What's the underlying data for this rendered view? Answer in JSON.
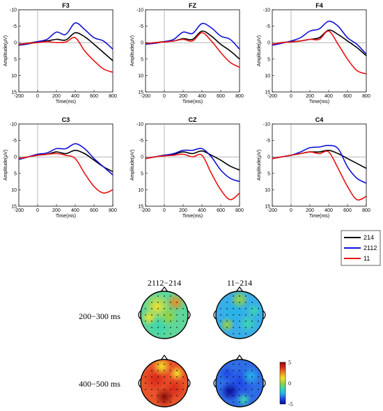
{
  "chart_data": {
    "type": "line",
    "panels": [
      {
        "title": "F3",
        "series": [
          {
            "name": "214",
            "x": [
              -200,
              -100,
              0,
              100,
              200,
              300,
              400,
              500,
              600,
              700,
              800
            ],
            "y": [
              0.5,
              0.2,
              -0.3,
              -0.5,
              -1.0,
              -0.8,
              -3.0,
              -1.8,
              0.5,
              3.0,
              5.5
            ]
          },
          {
            "name": "2112",
            "x": [
              -200,
              -100,
              0,
              100,
              200,
              300,
              400,
              500,
              600,
              700,
              800
            ],
            "y": [
              0.8,
              0.4,
              -0.3,
              -1.0,
              -3.2,
              -2.5,
              -6.0,
              -4.0,
              -1.5,
              -0.5,
              2.0
            ]
          },
          {
            "name": "11",
            "x": [
              -200,
              -100,
              0,
              100,
              200,
              300,
              400,
              500,
              600,
              700,
              800
            ],
            "y": [
              0.6,
              0.2,
              0.0,
              -0.3,
              0.0,
              -0.2,
              -1.5,
              2.5,
              5.5,
              8.0,
              9.0
            ]
          }
        ]
      },
      {
        "title": "FZ",
        "series": [
          {
            "name": "214",
            "x": [
              -200,
              -100,
              0,
              100,
              200,
              300,
              400,
              500,
              600,
              700,
              800
            ],
            "y": [
              0.3,
              0.0,
              -0.3,
              -0.5,
              -1.2,
              -1.0,
              -3.5,
              -2.0,
              0.5,
              2.5,
              5.0
            ]
          },
          {
            "name": "2112",
            "x": [
              -200,
              -100,
              0,
              100,
              200,
              300,
              400,
              500,
              600,
              700,
              800
            ],
            "y": [
              0.5,
              0.2,
              -0.3,
              -1.0,
              -3.2,
              -2.8,
              -5.8,
              -4.5,
              -2.0,
              -1.0,
              2.0
            ]
          },
          {
            "name": "11",
            "x": [
              -200,
              -100,
              0,
              100,
              200,
              300,
              400,
              500,
              600,
              700,
              800
            ],
            "y": [
              0.3,
              0.0,
              -0.2,
              -0.5,
              -1.0,
              -0.5,
              -3.0,
              -0.5,
              3.0,
              6.0,
              7.5
            ]
          }
        ]
      },
      {
        "title": "F4",
        "series": [
          {
            "name": "214",
            "x": [
              -200,
              -100,
              0,
              100,
              200,
              300,
              400,
              500,
              600,
              700,
              800
            ],
            "y": [
              0.5,
              0.0,
              -0.3,
              -0.5,
              -1.0,
              -1.5,
              -3.8,
              -2.5,
              -0.5,
              1.5,
              4.0
            ]
          },
          {
            "name": "2112",
            "x": [
              -200,
              -100,
              0,
              100,
              200,
              300,
              400,
              500,
              600,
              700,
              800
            ],
            "y": [
              0.8,
              0.2,
              -0.5,
              -1.5,
              -3.5,
              -4.2,
              -6.5,
              -5.0,
              -1.5,
              0.5,
              3.5
            ]
          },
          {
            "name": "11",
            "x": [
              -200,
              -100,
              0,
              100,
              200,
              300,
              400,
              500,
              600,
              700,
              800
            ],
            "y": [
              0.5,
              0.0,
              -0.2,
              -0.5,
              -1.0,
              -1.0,
              -3.5,
              0.5,
              5.0,
              8.5,
              9.5
            ]
          }
        ]
      },
      {
        "title": "C3",
        "series": [
          {
            "name": "214",
            "x": [
              -200,
              -100,
              0,
              100,
              200,
              300,
              400,
              500,
              600,
              700,
              800
            ],
            "y": [
              0.5,
              0.0,
              -0.5,
              -0.8,
              -1.5,
              -1.0,
              -2.0,
              -1.0,
              1.0,
              3.0,
              4.5
            ]
          },
          {
            "name": "2112",
            "x": [
              -200,
              -100,
              0,
              100,
              200,
              300,
              400,
              500,
              600,
              700,
              800
            ],
            "y": [
              0.8,
              0.0,
              -0.8,
              -1.2,
              -2.5,
              -2.5,
              -4.0,
              -2.5,
              0.5,
              3.0,
              5.5
            ]
          },
          {
            "name": "11",
            "x": [
              -200,
              -100,
              0,
              100,
              200,
              300,
              400,
              500,
              600,
              700,
              800
            ],
            "y": [
              0.5,
              0.0,
              -0.5,
              -0.8,
              -1.0,
              -0.5,
              0.5,
              5.0,
              9.0,
              11.0,
              10.0
            ]
          }
        ]
      },
      {
        "title": "CZ",
        "series": [
          {
            "name": "214",
            "x": [
              -200,
              -100,
              0,
              100,
              200,
              300,
              400,
              500,
              600,
              700,
              800
            ],
            "y": [
              0.5,
              0.0,
              -0.5,
              -0.8,
              -1.5,
              -1.0,
              -1.8,
              -0.5,
              1.0,
              2.8,
              4.0
            ]
          },
          {
            "name": "2112",
            "x": [
              -200,
              -100,
              0,
              100,
              200,
              300,
              400,
              500,
              600,
              700,
              800
            ],
            "y": [
              0.5,
              0.0,
              -0.5,
              -1.0,
              -2.0,
              -2.0,
              -2.5,
              0.0,
              4.0,
              6.5,
              7.5
            ]
          },
          {
            "name": "11",
            "x": [
              -200,
              -100,
              0,
              100,
              200,
              300,
              400,
              500,
              600,
              700,
              800
            ],
            "y": [
              0.5,
              0.0,
              -0.3,
              -0.5,
              -0.8,
              0.0,
              -0.5,
              5.0,
              10.0,
              13.0,
              11.0
            ]
          }
        ]
      },
      {
        "title": "C4",
        "series": [
          {
            "name": "214",
            "x": [
              -200,
              -100,
              0,
              100,
              200,
              300,
              400,
              500,
              600,
              700,
              800
            ],
            "y": [
              0.5,
              0.0,
              -0.5,
              -1.0,
              -1.5,
              -1.5,
              -2.0,
              -1.0,
              0.5,
              2.0,
              3.5
            ]
          },
          {
            "name": "2112",
            "x": [
              -200,
              -100,
              0,
              100,
              200,
              300,
              400,
              500,
              600,
              700,
              800
            ],
            "y": [
              0.5,
              0.0,
              -0.5,
              -1.5,
              -2.8,
              -3.0,
              -3.5,
              -2.5,
              3.0,
              6.5,
              8.0
            ]
          },
          {
            "name": "11",
            "x": [
              -200,
              -100,
              0,
              100,
              200,
              300,
              400,
              500,
              600,
              700,
              800
            ],
            "y": [
              0.5,
              0.0,
              -0.5,
              -1.0,
              -1.5,
              -1.0,
              -1.5,
              3.5,
              9.0,
              13.0,
              12.0
            ]
          }
        ]
      }
    ],
    "xlabel": "Time(ms)",
    "ylabel": "Amplitude(μV)",
    "xlim": [
      -200,
      800
    ],
    "ylim": [
      -10,
      15
    ],
    "y_inverted": true,
    "xticks": [
      "-200",
      "0",
      "200",
      "400",
      "600",
      "800"
    ],
    "yticks": [
      "-10",
      "-5",
      "0",
      "5",
      "10",
      "15"
    ],
    "series_colors": {
      "214": "#000000",
      "2112": "#1010d8",
      "11": "#e81010"
    },
    "legend": {
      "placement": "right",
      "entries": [
        "214",
        "2112",
        "11"
      ]
    }
  },
  "topomaps": {
    "column_labels": [
      "2112−214",
      "11−214"
    ],
    "row_labels": [
      "200−300 ms",
      "400−500 ms"
    ],
    "colorbar": {
      "ticks": [
        "5",
        "0",
        "-5"
      ],
      "range": [
        -5,
        5
      ]
    }
  }
}
